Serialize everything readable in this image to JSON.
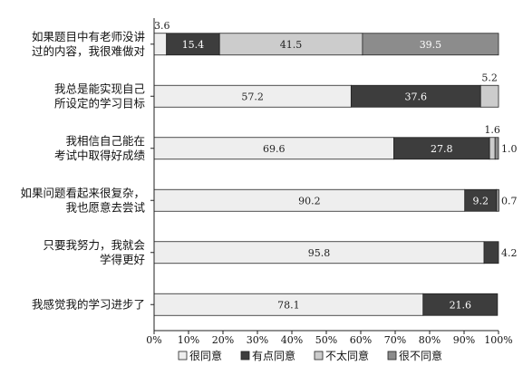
{
  "chart_data": {
    "type": "bar",
    "orientation": "horizontal",
    "stacked": true,
    "percent": true,
    "categories": [
      [
        "如果题目中有老师没讲",
        "过的内容，我很难做对"
      ],
      [
        "我总是能实现自己",
        "所设定的学习目标"
      ],
      [
        "我相信自己能在",
        "考试中取得好成绩"
      ],
      [
        "如果问题看起来很复杂，",
        "我也愿意去尝试"
      ],
      [
        "只要我努力，我就会",
        "学得更好"
      ],
      [
        "我感觉我的学习进步了"
      ]
    ],
    "series": [
      {
        "name": "很同意",
        "color": "#eeeeee",
        "values": [
          3.6,
          57.2,
          69.6,
          90.2,
          95.8,
          78.1
        ]
      },
      {
        "name": "有点同意",
        "color": "#3d3d3d",
        "values": [
          15.4,
          37.6,
          27.8,
          9.2,
          4.2,
          21.6
        ]
      },
      {
        "name": "不太同意",
        "color": "#cccccc",
        "values": [
          41.5,
          5.2,
          1.6,
          0.0,
          0.0,
          0.0
        ]
      },
      {
        "name": "很不同意",
        "color": "#8c8c8c",
        "values": [
          39.5,
          0.0,
          1.0,
          0.7,
          0.0,
          0.0
        ]
      }
    ],
    "labels": [
      [
        "3.6",
        "15.4",
        "41.5",
        "39.5"
      ],
      [
        "57.2",
        "37.6",
        "5.2",
        ""
      ],
      [
        "69.6",
        "27.8",
        "1.6",
        "1.0"
      ],
      [
        "90.2",
        "9.2",
        "",
        "0.7"
      ],
      [
        "95.8",
        "4.2",
        "",
        ""
      ],
      [
        "78.1",
        "21.6",
        "",
        ""
      ]
    ],
    "xticks": [
      "0%",
      "10%",
      "20%",
      "30%",
      "40%",
      "50%",
      "60%",
      "70%",
      "80%",
      "90%",
      "100%"
    ],
    "xlim": [
      0,
      100
    ],
    "grid": false,
    "legend_position": "bottom"
  }
}
